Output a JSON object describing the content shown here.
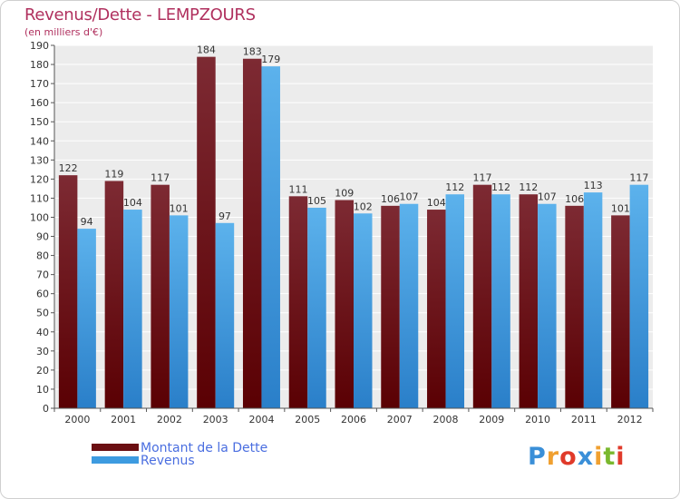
{
  "chart_data": {
    "type": "bar",
    "title": "Revenus/Dette - LEMPZOURS",
    "subtitle": "(en milliers d'€)",
    "categories": [
      "2000",
      "2001",
      "2002",
      "2003",
      "2004",
      "2005",
      "2006",
      "2007",
      "2008",
      "2009",
      "2010",
      "2011",
      "2012"
    ],
    "series": [
      {
        "name": "Montant de la Dette",
        "color": "#6b0f12",
        "values": [
          122,
          119,
          117,
          184,
          183,
          111,
          109,
          106,
          104,
          117,
          112,
          106,
          101
        ]
      },
      {
        "name": "Revenus",
        "color": "#3d9be0",
        "values": [
          94,
          104,
          101,
          97,
          179,
          105,
          102,
          107,
          112,
          112,
          107,
          113,
          117
        ]
      }
    ],
    "ylim": [
      0,
      190
    ],
    "ytick_step": 10,
    "grid": true,
    "legend": "bottom-left"
  },
  "legend": {
    "debt_label": "Montant de la Dette",
    "revenue_label": "Revenus"
  },
  "logo": {
    "letters": [
      "P",
      "r",
      "o",
      "x",
      "i",
      "t",
      "i"
    ],
    "colors": [
      "#3a8fd8",
      "#f0a030",
      "#e03a2a",
      "#3a8fd8",
      "#f0a030",
      "#7ab82e",
      "#e03a2a"
    ]
  }
}
